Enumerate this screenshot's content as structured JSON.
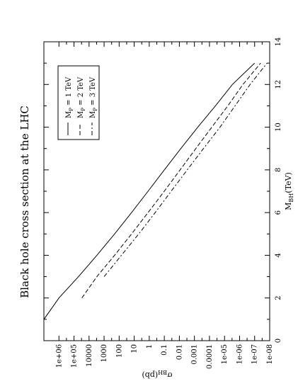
{
  "chart_data": {
    "type": "line",
    "title": "Black hole cross section at the LHC",
    "xlabel_main": "M",
    "xlabel_sub": "BH",
    "xlabel_unit": "(TeV)",
    "ylabel_main": "σ",
    "ylabel_sub": "BH",
    "ylabel_unit": "(pb)",
    "xlim": [
      0,
      14
    ],
    "x_ticks": [
      0,
      2,
      4,
      6,
      8,
      10,
      12,
      14
    ],
    "y_scale": "log",
    "ylim": [
      1e-08,
      10000000.0
    ],
    "y_ticks": [
      {
        "value": 1000000.0,
        "label": "1e+06"
      },
      {
        "value": 100000.0,
        "label": "1e+05"
      },
      {
        "value": 10000.0,
        "label": "10000"
      },
      {
        "value": 1000.0,
        "label": "1000"
      },
      {
        "value": 100.0,
        "label": "100"
      },
      {
        "value": 10.0,
        "label": "10"
      },
      {
        "value": 1,
        "label": "1"
      },
      {
        "value": 0.1,
        "label": "0.1"
      },
      {
        "value": 0.01,
        "label": "0.01"
      },
      {
        "value": 0.001,
        "label": "0.001"
      },
      {
        "value": 0.0001,
        "label": "0.0001"
      },
      {
        "value": 1e-05,
        "label": "1e-05"
      },
      {
        "value": 1e-06,
        "label": "1e-06"
      },
      {
        "value": 1e-07,
        "label": "1e-07"
      },
      {
        "value": 1e-08,
        "label": "1e-08"
      }
    ],
    "legend_position": "top-right",
    "series": [
      {
        "name": "M_P = 1 TeV",
        "label_main": "M",
        "label_sub": "P",
        "label_rest": " = 1 TeV",
        "style": "solid",
        "points": [
          [
            1,
            10000000.0
          ],
          [
            2,
            1000000.0
          ],
          [
            3,
            50000.0
          ],
          [
            4,
            3000.0
          ],
          [
            5,
            200.0
          ],
          [
            6,
            15
          ],
          [
            7,
            1.2
          ],
          [
            8,
            0.1
          ],
          [
            9,
            0.008
          ],
          [
            10,
            0.0006
          ],
          [
            11,
            4e-05
          ],
          [
            12,
            3e-06
          ],
          [
            13,
            1e-07
          ]
        ]
      },
      {
        "name": "M_P = 2 TeV",
        "label_main": "M",
        "label_sub": "P",
        "label_rest": " = 2 TeV",
        "style": "dash",
        "points": [
          [
            2,
            30000.0
          ],
          [
            3,
            3000.0
          ],
          [
            4,
            200.0
          ],
          [
            5,
            15
          ],
          [
            6,
            1.2
          ],
          [
            7,
            0.1
          ],
          [
            8,
            0.009
          ],
          [
            9,
            0.0008
          ],
          [
            10,
            7e-05
          ],
          [
            11,
            6e-06
          ],
          [
            12,
            6e-07
          ],
          [
            13,
            4e-08
          ]
        ]
      },
      {
        "name": "M_P = 3 TeV",
        "label_main": "M",
        "label_sub": "P",
        "label_rest": " = 3 TeV",
        "style": "dashdot",
        "points": [
          [
            3,
            1000.0
          ],
          [
            4,
            70
          ],
          [
            5,
            5
          ],
          [
            6,
            0.4
          ],
          [
            7,
            0.035
          ],
          [
            8,
            0.003
          ],
          [
            9,
            0.00025
          ],
          [
            10,
            2e-05
          ],
          [
            11,
            2e-06
          ],
          [
            12,
            2e-07
          ],
          [
            13,
            1.5e-08
          ]
        ]
      }
    ]
  }
}
